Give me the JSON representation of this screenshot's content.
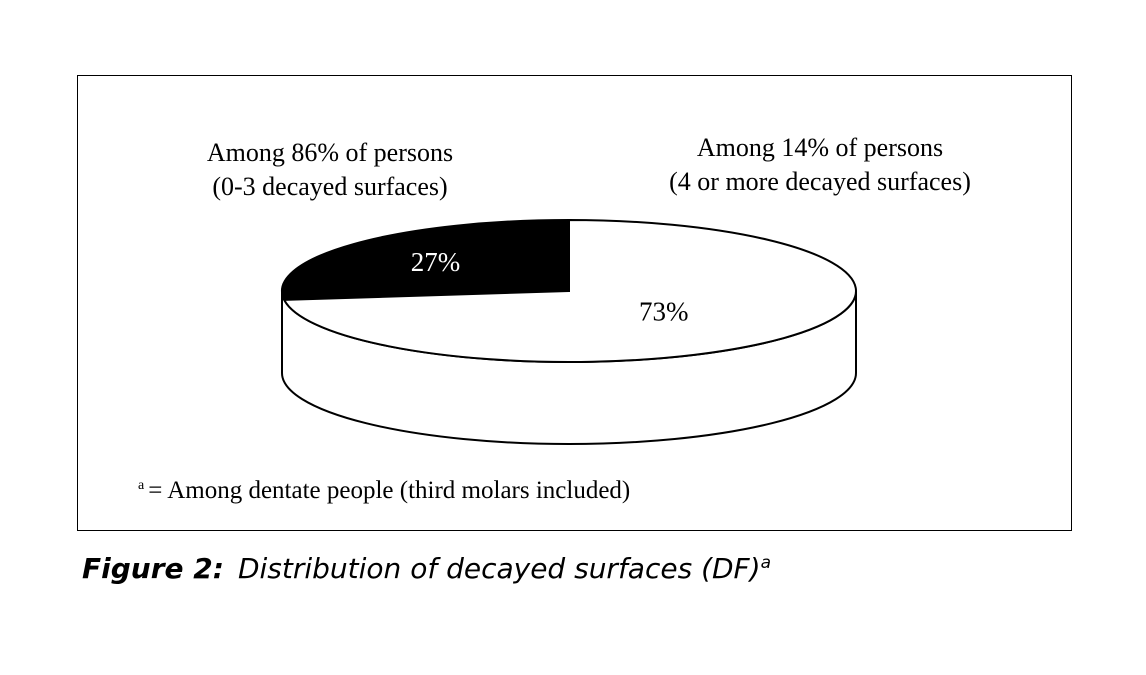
{
  "chart_data": {
    "type": "pie",
    "style": "3d",
    "slices": [
      {
        "value": 27,
        "label": "27%",
        "color": "#000000",
        "text_color": "#ffffff"
      },
      {
        "value": 73,
        "label": "73%",
        "color": "#ffffff",
        "text_color": "#000000"
      }
    ],
    "annotations": {
      "left": [
        "Among 86% of persons",
        "(0-3 decayed surfaces)"
      ],
      "right": [
        "Among 14% of persons",
        "(4 or more decayed surfaces)"
      ]
    }
  },
  "footnote": {
    "marker": "a",
    "text": "= Among dentate people (third molars included)"
  },
  "caption": {
    "label": "Figure 2:",
    "text": "Distribution of decayed surfaces (DF)",
    "superscript": "a"
  }
}
